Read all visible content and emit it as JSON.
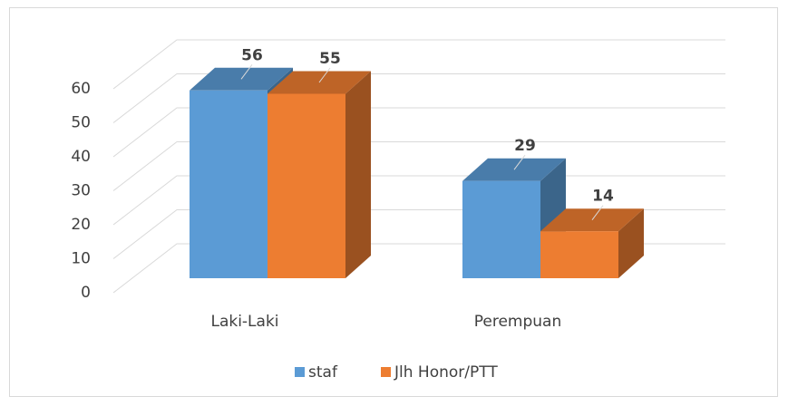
{
  "chart_data": {
    "type": "bar3d",
    "categories": [
      "Laki-Laki",
      "Perempuan"
    ],
    "series": [
      {
        "name": "staf",
        "color": "#5b9bd5",
        "values": [
          56,
          29
        ]
      },
      {
        "name": "Jlh Honor/PTT",
        "color": "#ed7d31",
        "values": [
          55,
          14
        ]
      }
    ],
    "ylim": [
      0,
      60
    ],
    "yticks": [
      0,
      10,
      20,
      30,
      40,
      50,
      60
    ],
    "grid": true,
    "legend": "bottom"
  }
}
